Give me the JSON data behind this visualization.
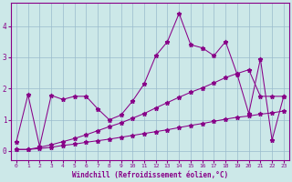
{
  "x": [
    0,
    1,
    2,
    3,
    4,
    5,
    6,
    7,
    8,
    9,
    10,
    11,
    12,
    13,
    14,
    15,
    16,
    17,
    18,
    19,
    20,
    21,
    22,
    23
  ],
  "line1": [
    0.3,
    1.8,
    0.15,
    1.78,
    1.65,
    1.75,
    1.75,
    1.35,
    1.0,
    1.15,
    1.6,
    2.15,
    3.05,
    3.5,
    4.4,
    3.4,
    3.3,
    3.05,
    3.5,
    2.45,
    1.2,
    2.95,
    0.35,
    1.75
  ],
  "line2": [
    0.05,
    0.05,
    0.08,
    0.12,
    0.18,
    0.22,
    0.28,
    0.33,
    0.38,
    0.44,
    0.5,
    0.56,
    0.62,
    0.68,
    0.75,
    0.82,
    0.88,
    0.95,
    1.02,
    1.08,
    1.12,
    1.18,
    1.22,
    1.28
  ],
  "line3": [
    0.05,
    0.05,
    0.12,
    0.2,
    0.3,
    0.4,
    0.52,
    0.65,
    0.78,
    0.9,
    1.05,
    1.2,
    1.38,
    1.55,
    1.72,
    1.88,
    2.02,
    2.18,
    2.35,
    2.48,
    2.6,
    1.75,
    1.75,
    1.75
  ],
  "line_color": "#880088",
  "bg_color": "#cce8e8",
  "grid_color": "#99bbcc",
  "xlabel": "Windchill (Refroidissement éolien,°C)",
  "ylim": [
    -0.3,
    4.75
  ],
  "xlim": [
    -0.5,
    23.5
  ],
  "yticks": [
    0,
    1,
    2,
    3,
    4
  ],
  "xticks": [
    0,
    1,
    2,
    3,
    4,
    5,
    6,
    7,
    8,
    9,
    10,
    11,
    12,
    13,
    14,
    15,
    16,
    17,
    18,
    19,
    20,
    21,
    22,
    23
  ]
}
